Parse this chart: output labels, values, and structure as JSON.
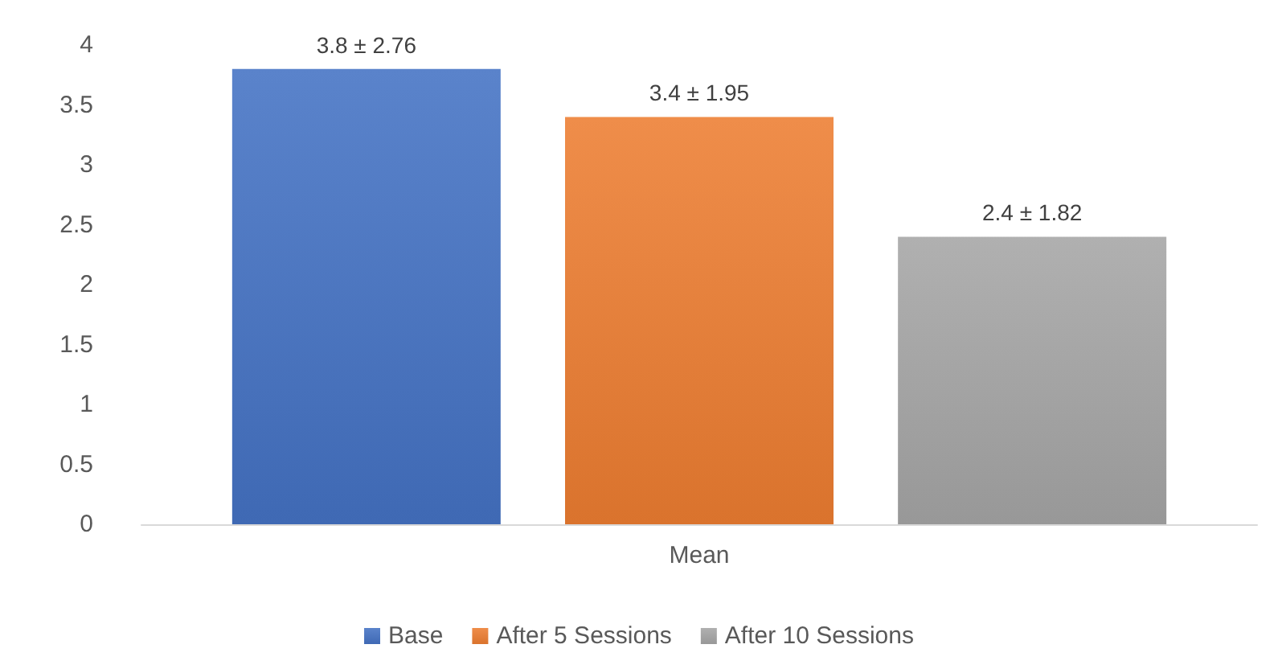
{
  "chart_data": {
    "type": "bar",
    "categories": [
      "Mean"
    ],
    "series": [
      {
        "name": "Base",
        "color": "#4472c4",
        "values": [
          3.8
        ],
        "value_labels": [
          "3.8 ± 2.76"
        ]
      },
      {
        "name": "After 5 Sessions",
        "color": "#ed7d31",
        "values": [
          3.4
        ],
        "value_labels": [
          "3.4 ± 1.95"
        ]
      },
      {
        "name": "After 10 Sessions",
        "color": "#a5a5a5",
        "values": [
          2.4
        ],
        "value_labels": [
          "2.4 ± 1.82"
        ]
      }
    ],
    "ylim": [
      0,
      4
    ],
    "yticks": [
      0,
      0.5,
      1,
      1.5,
      2,
      2.5,
      3,
      3.5,
      4
    ],
    "grid": false,
    "legend": "bottom"
  }
}
